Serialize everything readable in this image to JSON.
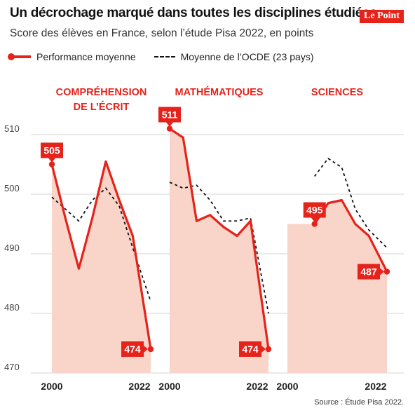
{
  "header": {
    "title": "Un décrochage marqué dans toutes les disciplines étudiées",
    "subtitle": "Score des élèves en France, selon l’étude Pisa 2022, en points",
    "logo": "Le Point"
  },
  "legend": {
    "solid_label": "Performance moyenne",
    "dashed_label": "Moyenne de l’OCDE (23 pays)"
  },
  "footer": {
    "source": "Source : Étude Pisa 2022."
  },
  "colors": {
    "accent": "#e5231b",
    "area_fill": "#f9d4c8",
    "grid": "#d6d6d6",
    "ocde_line": "#111111"
  },
  "chart_data": {
    "type": "line",
    "y_axis": {
      "ylim": [
        470,
        513
      ],
      "ticks": [
        470,
        480,
        490,
        500,
        510
      ]
    },
    "x_axis": {
      "xlim": [
        2000,
        2022
      ],
      "tick_labels": [
        "2000",
        "2022"
      ]
    },
    "grid": true,
    "legend_position": "top-left",
    "panels": [
      {
        "title": [
          "COMPRÉHENSION",
          "DE L’ÉCRIT"
        ],
        "x": [
          2000,
          2003,
          2006,
          2009,
          2012,
          2015,
          2018,
          2022
        ],
        "series": [
          {
            "name": "Performance moyenne",
            "values": [
              505,
              496,
              487.5,
              496,
              505.5,
              499,
              493,
              474
            ]
          },
          {
            "name": "Moyenne de l’OCDE (23 pays)",
            "values": [
              499.5,
              497.5,
              495.5,
              499,
              501,
              498,
              491,
              482
            ]
          }
        ],
        "labels": [
          {
            "text": "505",
            "x": 2000,
            "y": 505,
            "pos": "above"
          },
          {
            "text": "474",
            "x": 2022,
            "y": 474,
            "pos": "left"
          }
        ]
      },
      {
        "title": [
          "MATHÉMATIQUES"
        ],
        "x": [
          2000,
          2003,
          2006,
          2009,
          2012,
          2015,
          2018,
          2022
        ],
        "series": [
          {
            "name": "Performance moyenne",
            "values": [
              511,
              509.5,
              495.5,
              496.5,
              494.5,
              493,
              495.5,
              474
            ]
          },
          {
            "name": "Moyenne de l’OCDE (23 pays)",
            "values": [
              502,
              501,
              501.5,
              499,
              495.5,
              495.5,
              496,
              480
            ]
          }
        ],
        "labels": [
          {
            "text": "511",
            "x": 2000,
            "y": 511,
            "pos": "above"
          },
          {
            "text": "474",
            "x": 2022,
            "y": 474,
            "pos": "left"
          }
        ]
      },
      {
        "title": [
          "SCIENCES"
        ],
        "x": [
          2006,
          2009,
          2012,
          2015,
          2018,
          2022
        ],
        "series": [
          {
            "name": "Performance moyenne",
            "values": [
              495,
              498.5,
              499,
              495,
              493,
              487
            ]
          },
          {
            "name": "Moyenne de l’OCDE (23 pays)",
            "values": [
              503,
              506,
              504.5,
              497.5,
              494,
              491
            ]
          }
        ],
        "labels": [
          {
            "text": "495",
            "x": 2006,
            "y": 495,
            "pos": "above"
          },
          {
            "text": "487",
            "x": 2022,
            "y": 487,
            "pos": "left"
          }
        ]
      }
    ]
  }
}
